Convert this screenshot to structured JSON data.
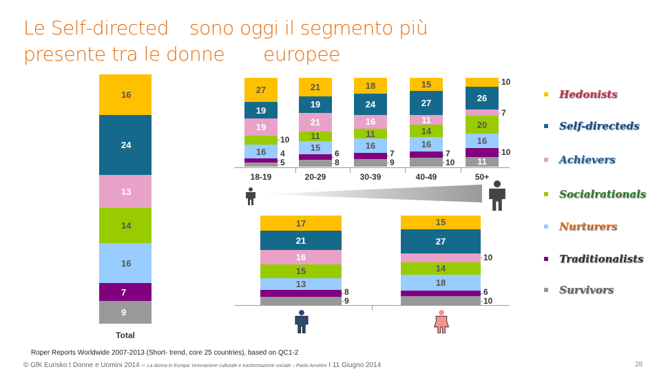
{
  "title": {
    "line1a": "Le  Self-directed",
    "line1b": "sono oggi il segmento più",
    "line2a": "presente tra le donne",
    "line2b": "europee"
  },
  "chart_data": {
    "type": "bar",
    "stacked": true,
    "segments": [
      "Hedonists",
      "Self-directeds",
      "Achievers",
      "Socialrationals",
      "Nurturers",
      "Traditionalists",
      "Survivors"
    ],
    "colors": [
      "#ffc000",
      "#156a8b",
      "#e8a2c8",
      "#99cc00",
      "#99ccff",
      "#800080",
      "#999999"
    ],
    "text_colors": [
      "#555555",
      "#ffffff",
      "#ffffff",
      "#555555",
      "#555555",
      "#ffffff",
      "#ffffff"
    ],
    "total": {
      "label": "Total",
      "values": [
        16,
        24,
        13,
        14,
        16,
        7,
        9
      ]
    },
    "age": {
      "categories": [
        "18-19",
        "20-29",
        "30-39",
        "40-49",
        "50+"
      ],
      "values": [
        [
          27,
          19,
          19,
          10,
          16,
          4,
          5
        ],
        [
          21,
          19,
          21,
          11,
          15,
          6,
          8
        ],
        [
          18,
          24,
          16,
          11,
          16,
          7,
          9
        ],
        [
          15,
          27,
          11,
          14,
          16,
          7,
          10
        ],
        [
          10,
          26,
          7,
          20,
          16,
          10,
          11
        ]
      ]
    },
    "gender": {
      "categories": [
        "Uomini",
        "Donne"
      ],
      "values": [
        [
          17,
          21,
          16,
          15,
          13,
          8,
          9
        ],
        [
          15,
          27,
          10,
          14,
          18,
          6,
          10
        ]
      ]
    }
  },
  "legend": [
    "Hedonists",
    "Self-directeds",
    "Achievers",
    "Socialrationals",
    "Nurturers",
    "Traditionalists",
    "Survivors"
  ],
  "footer": {
    "source": "Roper Reports Worldwide 2007-2013  (Short- trend, core 25 countries), based on QC1-2",
    "copyright": "© GfK Eurisko I Donne e Uomini 2014  – ",
    "italic": "La donna in Europa: innovazione culturale e trasformazione sociale – Paolo Anselmi",
    "date": " I 11 Giugno 2014",
    "page": "28"
  }
}
